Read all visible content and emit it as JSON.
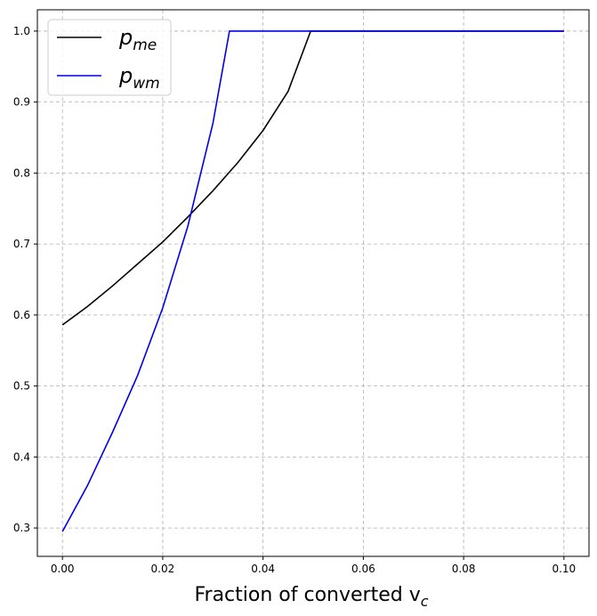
{
  "chart_data": {
    "type": "line",
    "xlabel": "Fraction of converted v",
    "xlabel_sub": "c",
    "ylabel": "",
    "title": "",
    "xlim": [
      -0.005,
      0.105
    ],
    "ylim": [
      0.26,
      1.03
    ],
    "xticks": [
      "0.00",
      "0.02",
      "0.04",
      "0.06",
      "0.08",
      "0.10"
    ],
    "yticks": [
      "0.3",
      "0.4",
      "0.5",
      "0.6",
      "0.7",
      "0.8",
      "0.9",
      "1.0"
    ],
    "grid": true,
    "legend_position": "top-left",
    "series": [
      {
        "name": "p",
        "name_sub": "me",
        "color": "#000000",
        "x": [
          0.0,
          0.005,
          0.01,
          0.015,
          0.02,
          0.025,
          0.03,
          0.035,
          0.04,
          0.045,
          0.0495,
          0.06,
          0.08,
          0.1
        ],
        "y": [
          0.586,
          0.612,
          0.641,
          0.672,
          0.703,
          0.738,
          0.775,
          0.815,
          0.86,
          0.915,
          1.0,
          1.0,
          1.0,
          1.0
        ]
      },
      {
        "name": "p",
        "name_sub": "wm",
        "color": "#0000ee",
        "x": [
          0.0,
          0.005,
          0.01,
          0.015,
          0.02,
          0.025,
          0.03,
          0.0333,
          0.04,
          0.06,
          0.08,
          0.1
        ],
        "y": [
          0.295,
          0.36,
          0.435,
          0.515,
          0.61,
          0.725,
          0.87,
          1.0,
          1.0,
          1.0,
          1.0,
          1.0
        ]
      }
    ]
  }
}
